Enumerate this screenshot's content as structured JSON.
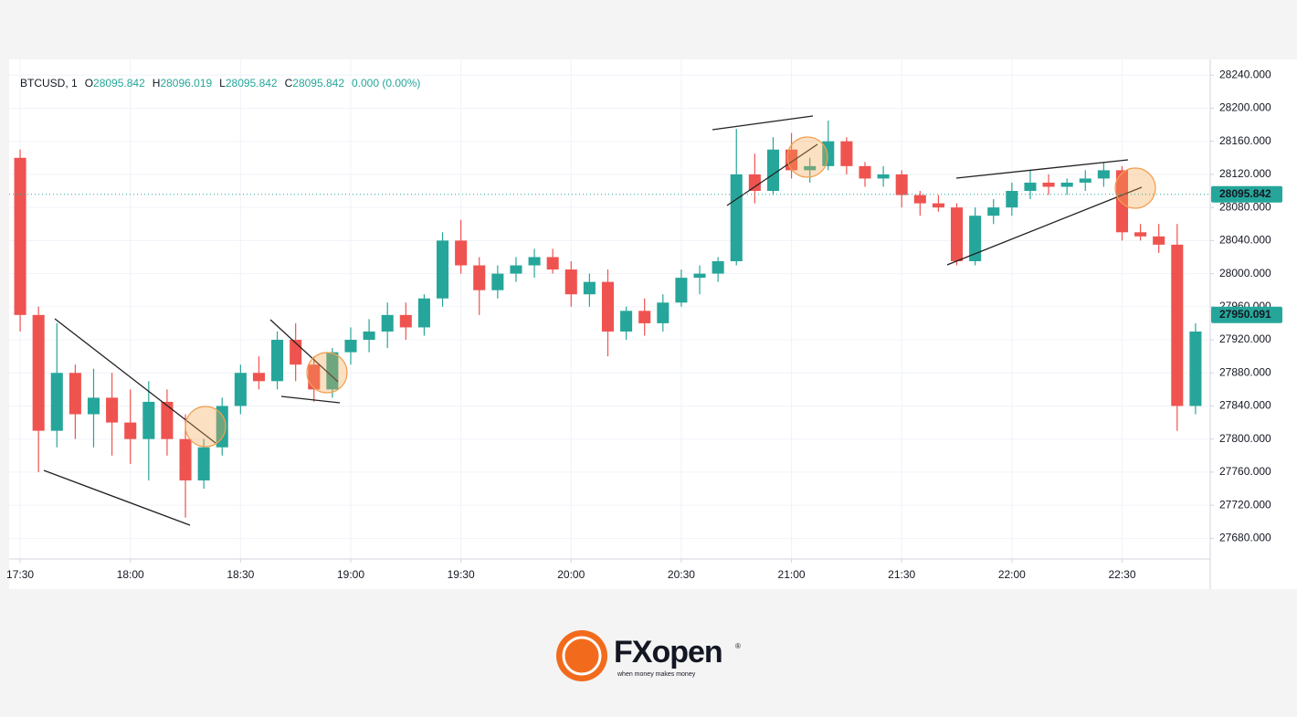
{
  "chart_data": {
    "type": "candlestick",
    "header": {
      "symbol": "BTCUSD, 1",
      "fields": [
        {
          "label": "O",
          "value": 28095.842
        },
        {
          "label": "H",
          "value": 28096.019
        },
        {
          "label": "L",
          "value": 28095.842
        },
        {
          "label": "C",
          "value": 28095.842
        }
      ],
      "change": "0.000 (0.00%)"
    },
    "x": [
      "17:30",
      "17:35",
      "17:40",
      "17:45",
      "17:50",
      "17:55",
      "18:00",
      "18:05",
      "18:10",
      "18:15",
      "18:20",
      "18:25",
      "18:30",
      "18:35",
      "18:40",
      "18:45",
      "18:50",
      "18:55",
      "19:00",
      "19:05",
      "19:10",
      "19:15",
      "19:20",
      "19:25",
      "19:30",
      "19:35",
      "19:40",
      "19:45",
      "19:50",
      "19:55",
      "20:00",
      "20:05",
      "20:10",
      "20:15",
      "20:20",
      "20:25",
      "20:30",
      "20:35",
      "20:40",
      "20:45",
      "20:50",
      "20:55",
      "21:00",
      "21:05",
      "21:10",
      "21:15",
      "21:20",
      "21:25",
      "21:30",
      "21:35",
      "21:40",
      "21:45",
      "21:50",
      "21:55",
      "22:00",
      "22:05",
      "22:10",
      "22:15",
      "22:20",
      "22:25",
      "22:30",
      "22:35",
      "22:40",
      "22:45",
      "22:50"
    ],
    "open": [
      28140,
      27950,
      27810,
      27880,
      27830,
      27850,
      27820,
      27800,
      27845,
      27800,
      27750,
      27790,
      27840,
      27880,
      27870,
      27920,
      27890,
      27860,
      27905,
      27920,
      27930,
      27950,
      27935,
      27970,
      28040,
      28010,
      27980,
      28000,
      28010,
      28020,
      28005,
      27975,
      27990,
      27930,
      27955,
      27940,
      27965,
      27995,
      28000,
      28015,
      28120,
      28100,
      28150,
      28125,
      28130,
      28160,
      28130,
      28115,
      28120,
      28095,
      28085,
      28080,
      28015,
      28070,
      28080,
      28100,
      28110,
      28105,
      28110,
      28115,
      28125,
      28050,
      28045,
      28035,
      27840
    ],
    "high": [
      28150,
      27960,
      27940,
      27890,
      27885,
      27880,
      27860,
      27870,
      27860,
      27830,
      27800,
      27850,
      27890,
      27900,
      27930,
      27940,
      27900,
      27910,
      27935,
      27945,
      27965,
      27965,
      27975,
      28050,
      28065,
      28020,
      28010,
      28020,
      28030,
      28030,
      28015,
      28000,
      28005,
      27960,
      27970,
      27975,
      28005,
      28010,
      28020,
      28175,
      28145,
      28165,
      28170,
      28140,
      28185,
      28165,
      28135,
      28130,
      28125,
      28100,
      28095,
      28085,
      28080,
      28090,
      28110,
      28125,
      28120,
      28115,
      28125,
      28135,
      28130,
      28060,
      28060,
      28060,
      27940
    ],
    "low": [
      27930,
      27760,
      27790,
      27800,
      27790,
      27780,
      27770,
      27750,
      27780,
      27705,
      27740,
      27780,
      27830,
      27860,
      27860,
      27870,
      27845,
      27850,
      27890,
      27905,
      27910,
      27920,
      27925,
      27960,
      28000,
      27950,
      27970,
      27990,
      27995,
      28000,
      27960,
      27960,
      27900,
      27920,
      27925,
      27930,
      27960,
      27975,
      27990,
      28010,
      28085,
      28095,
      28115,
      28110,
      28125,
      28120,
      28105,
      28105,
      28080,
      28070,
      28075,
      28010,
      28010,
      28060,
      28070,
      28090,
      28095,
      28095,
      28100,
      28105,
      28040,
      28040,
      28025,
      27810,
      27830
    ],
    "close": [
      27950,
      27810,
      27880,
      27830,
      27850,
      27820,
      27800,
      27845,
      27800,
      27750,
      27790,
      27840,
      27880,
      27870,
      27920,
      27890,
      27860,
      27905,
      27920,
      27930,
      27950,
      27935,
      27970,
      28040,
      28010,
      27980,
      28000,
      28010,
      28020,
      28005,
      27975,
      27990,
      27930,
      27955,
      27940,
      27965,
      27995,
      28000,
      28015,
      28120,
      28100,
      28150,
      28125,
      28130,
      28160,
      28130,
      28115,
      28120,
      28095,
      28085,
      28080,
      28015,
      28070,
      28080,
      28100,
      28110,
      28105,
      28110,
      28115,
      28125,
      28050,
      28045,
      28035,
      27840,
      27930
    ],
    "up_color": "#26a69a",
    "down_color": "#ef5350",
    "xlim": [
      "17:27",
      "22:54"
    ],
    "xticks": [
      "17:30",
      "18:00",
      "18:30",
      "19:00",
      "19:30",
      "20:00",
      "20:30",
      "21:00",
      "21:30",
      "22:00",
      "22:30"
    ],
    "ylim": [
      27655,
      28248
    ],
    "yticks": [
      {
        "value": 27680,
        "label": "27680.000"
      },
      {
        "value": 27720,
        "label": "27720.000"
      },
      {
        "value": 27760,
        "label": "27760.000"
      },
      {
        "value": 27800,
        "label": "27800.000"
      },
      {
        "value": 27840,
        "label": "27840.000"
      },
      {
        "value": 27880,
        "label": "27880.000"
      },
      {
        "value": 27920,
        "label": "27920.000"
      },
      {
        "value": 27960,
        "label": "27960.000"
      },
      {
        "value": 28000,
        "label": "28000.000"
      },
      {
        "value": 28040,
        "label": "28040.000"
      },
      {
        "value": 28080,
        "label": "28080.000"
      },
      {
        "value": 28120,
        "label": "28120.000"
      },
      {
        "value": 28160,
        "label": "28160.000"
      },
      {
        "value": 28200,
        "label": "28200.000"
      },
      {
        "value": 28240,
        "label": "28240.000"
      }
    ],
    "grid": true,
    "price_lines": [
      {
        "value": 28095.842,
        "color": "#26a69a",
        "dotted": true
      },
      {
        "value": 27950.091,
        "color": "#26a69a",
        "dotted": false
      }
    ]
  },
  "logo": {
    "name": "FXopen",
    "tagline": "when money makes money",
    "mark": "®"
  }
}
